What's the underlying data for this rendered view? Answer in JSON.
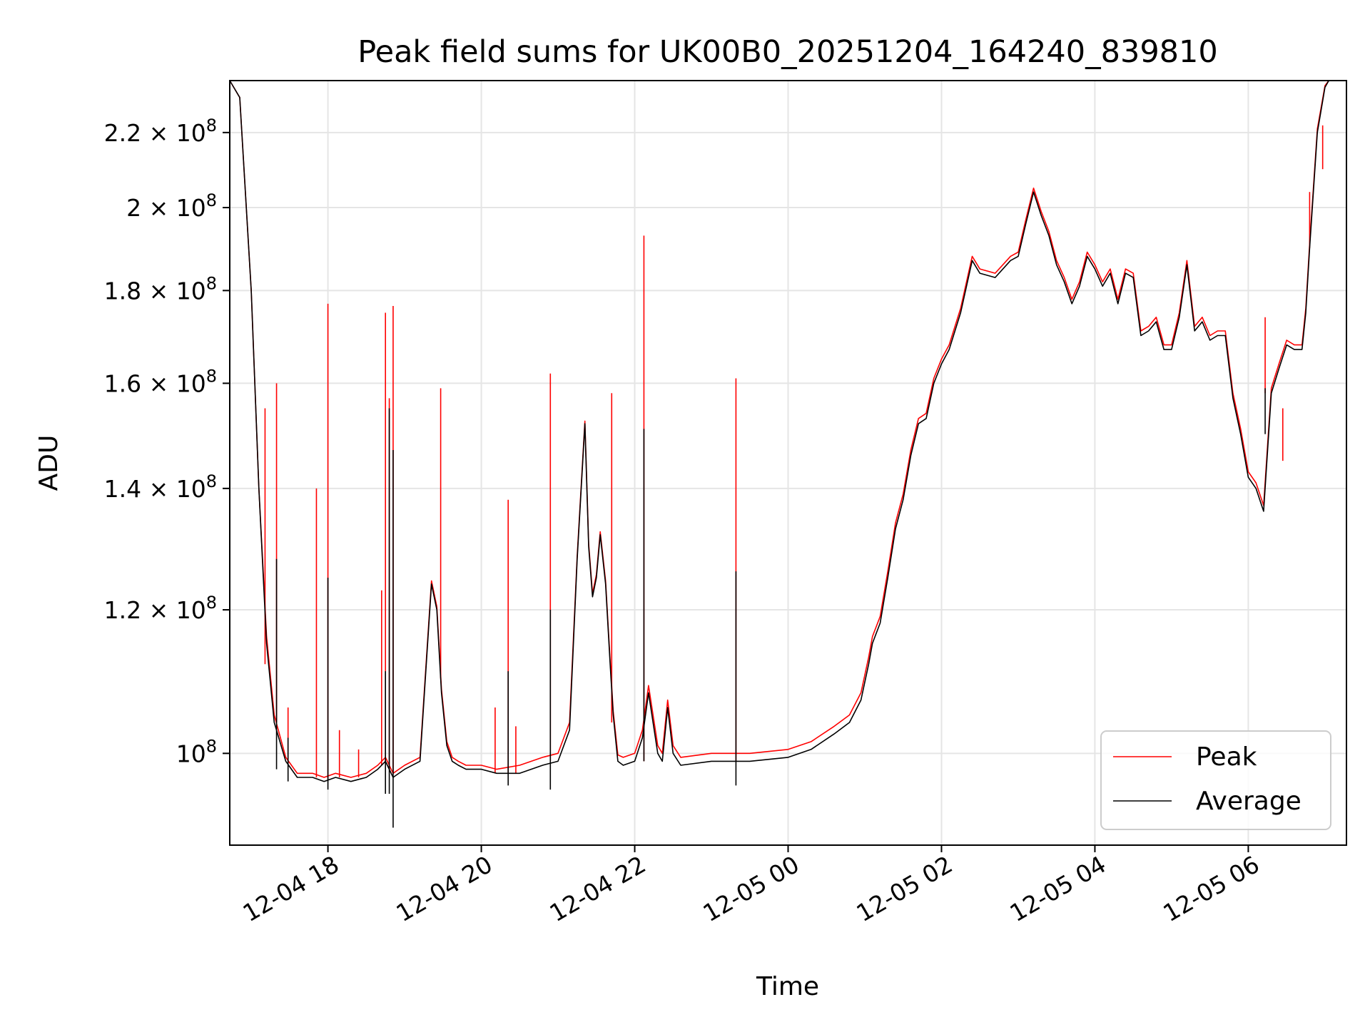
{
  "chart_data": {
    "type": "line",
    "title": "Peak field sums for UK00B0_20251204_164240_839810",
    "xlabel": "Time",
    "ylabel": "ADU",
    "x_unit": "hours since 2025-12-04 00:00",
    "xlim": [
      16.72,
      31.28
    ],
    "ylim": [
      89000000,
      235000000
    ],
    "y_scale": "log",
    "grid": true,
    "legend_position": "lower-right",
    "x_ticks": [
      {
        "value": 18,
        "label": "12-04 18"
      },
      {
        "value": 20,
        "label": "12-04 20"
      },
      {
        "value": 22,
        "label": "12-04 22"
      },
      {
        "value": 24,
        "label": "12-05 00"
      },
      {
        "value": 26,
        "label": "12-05 02"
      },
      {
        "value": 28,
        "label": "12-05 04"
      },
      {
        "value": 30,
        "label": "12-05 06"
      }
    ],
    "y_ticks": [
      {
        "value": 100000000,
        "mant": "",
        "exp": "8"
      },
      {
        "value": 120000000,
        "mant": "1.2",
        "exp": "8"
      },
      {
        "value": 140000000,
        "mant": "1.4",
        "exp": "8"
      },
      {
        "value": 160000000,
        "mant": "1.6",
        "exp": "8"
      },
      {
        "value": 180000000,
        "mant": "1.8",
        "exp": "8"
      },
      {
        "value": 200000000,
        "mant": "2",
        "exp": "8"
      },
      {
        "value": 220000000,
        "mant": "2.2",
        "exp": "8"
      }
    ],
    "series": [
      {
        "name": "Average",
        "color": "#000000",
        "x": [
          16.72,
          16.85,
          17.0,
          17.1,
          17.2,
          17.3,
          17.45,
          17.6,
          17.8,
          17.95,
          18.1,
          18.3,
          18.5,
          18.65,
          18.75,
          18.85,
          19.0,
          19.2,
          19.35,
          19.42,
          19.48,
          19.55,
          19.62,
          19.7,
          19.8,
          20.0,
          20.2,
          20.5,
          20.8,
          21.0,
          21.15,
          21.25,
          21.35,
          21.4,
          21.45,
          21.5,
          21.55,
          21.62,
          21.68,
          21.72,
          21.78,
          21.85,
          22.0,
          22.1,
          22.18,
          22.3,
          22.36,
          22.43,
          22.5,
          22.6,
          23.0,
          23.5,
          24.0,
          24.3,
          24.6,
          24.8,
          24.95,
          25.05,
          25.1,
          25.2,
          25.3,
          25.4,
          25.5,
          25.6,
          25.7,
          25.8,
          25.9,
          26.0,
          26.1,
          26.25,
          26.4,
          26.5,
          26.7,
          26.9,
          27.0,
          27.1,
          27.2,
          27.3,
          27.4,
          27.5,
          27.6,
          27.7,
          27.8,
          27.9,
          28.0,
          28.1,
          28.2,
          28.3,
          28.4,
          28.5,
          28.6,
          28.7,
          28.8,
          28.9,
          29.0,
          29.1,
          29.2,
          29.3,
          29.4,
          29.5,
          29.6,
          29.7,
          29.8,
          29.9,
          30.0,
          30.1,
          30.2,
          30.3,
          30.4,
          30.5,
          30.6,
          30.7,
          30.75,
          30.8,
          30.9,
          31.0,
          31.05,
          31.1,
          31.2,
          31.28
        ],
        "y": [
          235000000,
          230000000,
          180000000,
          140000000,
          115000000,
          104000000,
          99000000,
          97000000,
          97000000,
          96500000,
          97000000,
          96500000,
          97000000,
          98000000,
          99000000,
          97000000,
          98000000,
          99000000,
          124000000,
          120000000,
          108000000,
          101000000,
          99000000,
          98500000,
          98000000,
          98000000,
          97500000,
          97500000,
          98500000,
          99000000,
          103000000,
          128000000,
          152000000,
          130000000,
          122000000,
          125000000,
          132000000,
          124000000,
          112000000,
          105000000,
          99000000,
          98500000,
          99000000,
          102000000,
          108000000,
          100000000,
          99000000,
          106000000,
          100000000,
          98500000,
          99000000,
          99000000,
          99500000,
          100500000,
          102500000,
          104000000,
          107000000,
          112000000,
          115000000,
          118000000,
          125000000,
          133000000,
          138000000,
          146000000,
          152000000,
          153000000,
          160000000,
          164000000,
          167000000,
          175000000,
          187000000,
          184000000,
          183000000,
          187000000,
          188000000,
          196000000,
          204000000,
          198000000,
          193000000,
          186000000,
          182000000,
          177000000,
          181000000,
          188000000,
          185000000,
          181000000,
          184000000,
          177000000,
          184000000,
          183000000,
          170000000,
          171000000,
          173000000,
          167000000,
          167000000,
          174000000,
          186000000,
          171000000,
          173000000,
          169000000,
          170000000,
          170000000,
          157000000,
          150000000,
          142000000,
          140000000,
          136000000,
          158000000,
          163000000,
          168000000,
          167000000,
          167000000,
          175000000,
          190000000,
          220000000,
          233000000,
          235000000,
          235000000,
          235000000,
          235000000
        ]
      },
      {
        "name": "Peak",
        "color": "#ff0000",
        "x": [
          16.72,
          16.85,
          17.0,
          17.1,
          17.2,
          17.3,
          17.45,
          17.6,
          17.8,
          17.95,
          18.1,
          18.3,
          18.5,
          18.65,
          18.75,
          18.85,
          19.0,
          19.2,
          19.35,
          19.42,
          19.48,
          19.55,
          19.62,
          19.7,
          19.8,
          20.0,
          20.2,
          20.5,
          20.8,
          21.0,
          21.15,
          21.25,
          21.35,
          21.4,
          21.45,
          21.5,
          21.55,
          21.62,
          21.68,
          21.72,
          21.78,
          21.85,
          22.0,
          22.1,
          22.18,
          22.3,
          22.36,
          22.43,
          22.5,
          22.6,
          23.0,
          23.5,
          24.0,
          24.3,
          24.6,
          24.8,
          24.95,
          25.05,
          25.1,
          25.2,
          25.3,
          25.4,
          25.5,
          25.6,
          25.7,
          25.8,
          25.9,
          26.0,
          26.1,
          26.25,
          26.4,
          26.5,
          26.7,
          26.9,
          27.0,
          27.1,
          27.2,
          27.3,
          27.4,
          27.5,
          27.6,
          27.7,
          27.8,
          27.9,
          28.0,
          28.1,
          28.2,
          28.3,
          28.4,
          28.5,
          28.6,
          28.7,
          28.8,
          28.9,
          29.0,
          29.1,
          29.2,
          29.3,
          29.4,
          29.5,
          29.6,
          29.7,
          29.8,
          29.9,
          30.0,
          30.1,
          30.2,
          30.3,
          30.4,
          30.5,
          30.6,
          30.7,
          30.75,
          30.8,
          30.9,
          31.0,
          31.05,
          31.1,
          31.2,
          31.28
        ],
        "y": [
          235000000,
          230000000,
          180000000,
          140000000,
          116000000,
          105000000,
          99500000,
          97500000,
          97500000,
          97000000,
          97500000,
          97000000,
          97500000,
          98500000,
          99500000,
          97500000,
          98500000,
          99500000,
          124500000,
          120500000,
          108500000,
          101500000,
          99500000,
          99000000,
          98500000,
          98500000,
          98000000,
          98500000,
          99500000,
          100000000,
          104000000,
          128500000,
          152500000,
          130500000,
          122500000,
          125500000,
          132500000,
          124500000,
          112500000,
          105500000,
          99800000,
          99500000,
          100000000,
          103000000,
          109000000,
          101000000,
          100000000,
          107000000,
          101000000,
          99500000,
          100000000,
          100000000,
          100500000,
          101500000,
          103500000,
          105000000,
          108000000,
          113000000,
          116000000,
          119000000,
          126000000,
          134000000,
          139000000,
          147000000,
          153000000,
          154000000,
          161000000,
          165000000,
          168000000,
          176000000,
          188000000,
          185000000,
          184000000,
          188000000,
          189000000,
          197000000,
          205000000,
          199000000,
          194000000,
          187000000,
          183000000,
          178000000,
          182000000,
          189000000,
          186000000,
          182000000,
          185000000,
          178000000,
          185000000,
          184000000,
          171000000,
          172000000,
          174000000,
          168000000,
          168000000,
          175000000,
          187000000,
          172000000,
          174000000,
          170000000,
          171000000,
          171000000,
          158000000,
          151000000,
          143000000,
          141000000,
          137000000,
          159000000,
          164000000,
          169000000,
          168000000,
          168000000,
          176000000,
          191000000,
          221000000,
          233500000,
          235000000,
          235000000,
          235000000,
          235000000
        ]
      }
    ],
    "peak_spikes": [
      {
        "x": 17.18,
        "top": 155000000,
        "base": 112000000
      },
      {
        "x": 17.33,
        "top": 160000000,
        "base": 104000000
      },
      {
        "x": 17.48,
        "top": 106000000,
        "base": 99000000
      },
      {
        "x": 17.85,
        "top": 140000000,
        "base": 97000000
      },
      {
        "x": 18.0,
        "top": 177000000,
        "base": 96800000
      },
      {
        "x": 18.15,
        "top": 103000000,
        "base": 97000000
      },
      {
        "x": 18.4,
        "top": 100500000,
        "base": 97000000
      },
      {
        "x": 18.7,
        "top": 123000000,
        "base": 98500000
      },
      {
        "x": 18.75,
        "top": 175000000,
        "base": 99000000
      },
      {
        "x": 18.8,
        "top": 157000000,
        "base": 98000000
      },
      {
        "x": 18.85,
        "top": 176500000,
        "base": 97500000
      },
      {
        "x": 19.47,
        "top": 159000000,
        "base": 110000000
      },
      {
        "x": 20.18,
        "top": 106000000,
        "base": 97500000
      },
      {
        "x": 20.35,
        "top": 138000000,
        "base": 97500000
      },
      {
        "x": 20.45,
        "top": 103500000,
        "base": 97500000
      },
      {
        "x": 20.9,
        "top": 162000000,
        "base": 99000000
      },
      {
        "x": 21.7,
        "top": 158000000,
        "base": 104000000
      },
      {
        "x": 22.12,
        "top": 193000000,
        "base": 99000000
      },
      {
        "x": 23.32,
        "top": 161000000,
        "base": 99000000
      },
      {
        "x": 30.22,
        "top": 174000000,
        "base": 158000000
      },
      {
        "x": 30.45,
        "top": 155000000,
        "base": 145000000
      },
      {
        "x": 30.8,
        "top": 204000000,
        "base": 190000000
      },
      {
        "x": 30.97,
        "top": 222000000,
        "base": 210000000
      }
    ],
    "average_spikes": [
      {
        "x": 17.33,
        "top": 128000000,
        "base": 98000000
      },
      {
        "x": 17.48,
        "top": 102000000,
        "base": 96500000
      },
      {
        "x": 18.0,
        "top": 125000000,
        "base": 95500000
      },
      {
        "x": 18.75,
        "top": 111000000,
        "base": 95000000
      },
      {
        "x": 18.8,
        "top": 155000000,
        "base": 95000000
      },
      {
        "x": 18.85,
        "top": 147000000,
        "base": 91000000
      },
      {
        "x": 20.35,
        "top": 111000000,
        "base": 96000000
      },
      {
        "x": 20.9,
        "top": 120000000,
        "base": 95500000
      },
      {
        "x": 22.12,
        "top": 151000000,
        "base": 99000000
      },
      {
        "x": 23.32,
        "top": 126000000,
        "base": 96000000
      },
      {
        "x": 30.22,
        "top": 159000000,
        "base": 150000000
      }
    ]
  }
}
